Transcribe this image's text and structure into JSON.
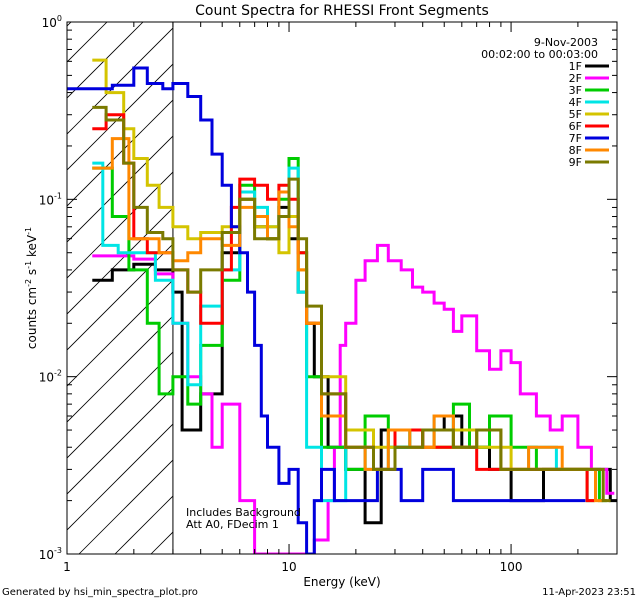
{
  "chart_data": {
    "type": "line",
    "title": "Count Spectra for RHESSI Front Segments",
    "xlabel": "Energy (keV)",
    "ylabel_main": "counts cm",
    "ylabel_exp1": "-2",
    "ylabel_mid": " s",
    "ylabel_exp2": "-1",
    "ylabel_end": " keV",
    "ylabel_exp3": "-1",
    "x_scale": "log",
    "y_scale": "log",
    "xlim": [
      1,
      300
    ],
    "ylim": [
      0.001,
      1
    ],
    "x_ticks": [
      {
        "value": 1,
        "label": "1"
      },
      {
        "value": 10,
        "label": "10"
      },
      {
        "value": 100,
        "label": "100"
      }
    ],
    "y_ticks": [
      {
        "value": 1,
        "mant": "10",
        "exp": "0"
      },
      {
        "value": 0.1,
        "mant": "10",
        "exp": "-1"
      },
      {
        "value": 0.01,
        "mant": "10",
        "exp": "-2"
      },
      {
        "value": 0.001,
        "mant": "10",
        "exp": "-3"
      }
    ],
    "hatched_region_x": [
      1,
      3
    ],
    "legend": {
      "position": "top-right",
      "date": "9-Nov-2003",
      "time_range": "00:02:00 to 00:03:00"
    },
    "annotations": [
      "Includes Background",
      "Att A0, FDecim 1"
    ],
    "footer_left": "Generated by hsi_min_spectra_plot.pro",
    "footer_right": "11-Apr-2023 23:51",
    "series": [
      {
        "name": "1F",
        "color": "#000000",
        "points": [
          [
            1.3,
            0.035
          ],
          [
            1.6,
            0.04
          ],
          [
            2.0,
            0.043
          ],
          [
            2.5,
            0.04
          ],
          [
            3.0,
            0.03
          ],
          [
            3.3,
            0.005
          ],
          [
            4.0,
            0.008
          ],
          [
            5.0,
            0.05
          ],
          [
            6.0,
            0.1
          ],
          [
            7.0,
            0.07
          ],
          [
            8.0,
            0.06
          ],
          [
            9.0,
            0.09
          ],
          [
            10.0,
            0.06
          ],
          [
            11.0,
            0.03
          ],
          [
            12.0,
            0.02
          ],
          [
            13.0,
            0.01
          ],
          [
            15.0,
            0.004
          ],
          [
            18.0,
            0.003
          ],
          [
            22.0,
            0.0015
          ],
          [
            26.0,
            0.005
          ],
          [
            30.0,
            0.004
          ],
          [
            40.0,
            0.005
          ],
          [
            50.0,
            0.006
          ],
          [
            60.0,
            0.004
          ],
          [
            80.0,
            0.003
          ],
          [
            100.0,
            0.002
          ],
          [
            140.0,
            0.003
          ],
          [
            200.0,
            0.003
          ],
          [
            280.0,
            0.002
          ]
        ]
      },
      {
        "name": "2F",
        "color": "#ff00ff",
        "points": [
          [
            1.3,
            0.048
          ],
          [
            1.7,
            0.048
          ],
          [
            2.0,
            0.046
          ],
          [
            2.5,
            0.038
          ],
          [
            3.0,
            0.02
          ],
          [
            3.5,
            0.01
          ],
          [
            4.0,
            0.008
          ],
          [
            4.5,
            0.004
          ],
          [
            5.0,
            0.007
          ],
          [
            6.0,
            0.002
          ],
          [
            7.0,
            0.001
          ],
          [
            10.0,
            0.001
          ],
          [
            13.0,
            0.0012
          ],
          [
            15.0,
            0.002
          ],
          [
            16.0,
            0.004
          ],
          [
            17.0,
            0.015
          ],
          [
            18.0,
            0.02
          ],
          [
            20.0,
            0.035
          ],
          [
            22.0,
            0.045
          ],
          [
            25.0,
            0.055
          ],
          [
            28.0,
            0.045
          ],
          [
            32.0,
            0.04
          ],
          [
            36.0,
            0.032
          ],
          [
            40.0,
            0.03
          ],
          [
            45.0,
            0.026
          ],
          [
            50.0,
            0.024
          ],
          [
            55.0,
            0.018
          ],
          [
            60.0,
            0.022
          ],
          [
            70.0,
            0.014
          ],
          [
            80.0,
            0.011
          ],
          [
            90.0,
            0.014
          ],
          [
            100.0,
            0.012
          ],
          [
            110.0,
            0.008
          ],
          [
            130.0,
            0.006
          ],
          [
            150.0,
            0.005
          ],
          [
            170.0,
            0.006
          ],
          [
            200.0,
            0.004
          ],
          [
            230.0,
            0.003
          ],
          [
            270.0,
            0.0022
          ]
        ]
      },
      {
        "name": "3F",
        "color": "#00cc00",
        "points": [
          [
            1.3,
            0.15
          ],
          [
            1.6,
            0.08
          ],
          [
            1.9,
            0.04
          ],
          [
            2.3,
            0.02
          ],
          [
            2.6,
            0.008
          ],
          [
            3.0,
            0.01
          ],
          [
            3.5,
            0.007
          ],
          [
            4.0,
            0.015
          ],
          [
            5.0,
            0.035
          ],
          [
            6.0,
            0.12
          ],
          [
            7.0,
            0.08
          ],
          [
            8.0,
            0.06
          ],
          [
            9.0,
            0.1
          ],
          [
            10.0,
            0.17
          ],
          [
            11.0,
            0.05
          ],
          [
            12.0,
            0.01
          ],
          [
            14.0,
            0.004
          ],
          [
            18.0,
            0.003
          ],
          [
            22.0,
            0.006
          ],
          [
            28.0,
            0.004
          ],
          [
            35.0,
            0.005
          ],
          [
            45.0,
            0.004
          ],
          [
            55.0,
            0.007
          ],
          [
            65.0,
            0.004
          ],
          [
            80.0,
            0.006
          ],
          [
            100.0,
            0.004
          ],
          [
            130.0,
            0.003
          ],
          [
            180.0,
            0.003
          ],
          [
            250.0,
            0.002
          ]
        ]
      },
      {
        "name": "4F",
        "color": "#00e5e5",
        "points": [
          [
            1.3,
            0.16
          ],
          [
            1.45,
            0.055
          ],
          [
            1.7,
            0.05
          ],
          [
            2.0,
            0.05
          ],
          [
            2.5,
            0.035
          ],
          [
            3.0,
            0.02
          ],
          [
            3.5,
            0.009
          ],
          [
            4.0,
            0.025
          ],
          [
            5.0,
            0.04
          ],
          [
            6.0,
            0.11
          ],
          [
            7.0,
            0.09
          ],
          [
            8.0,
            0.07
          ],
          [
            9.0,
            0.11
          ],
          [
            10.0,
            0.15
          ],
          [
            11.0,
            0.03
          ],
          [
            12.0,
            0.004
          ],
          [
            14.0,
            0.002
          ],
          [
            18.0,
            0.004
          ],
          [
            22.0,
            0.003
          ],
          [
            28.0,
            0.004
          ],
          [
            35.0,
            0.005
          ],
          [
            45.0,
            0.006
          ],
          [
            55.0,
            0.004
          ],
          [
            70.0,
            0.005
          ],
          [
            90.0,
            0.003
          ],
          [
            120.0,
            0.004
          ],
          [
            160.0,
            0.003
          ],
          [
            220.0,
            0.002
          ]
        ]
      },
      {
        "name": "5F",
        "color": "#d4c400",
        "points": [
          [
            1.3,
            0.61
          ],
          [
            1.5,
            0.4
          ],
          [
            1.8,
            0.25
          ],
          [
            2.0,
            0.17
          ],
          [
            2.3,
            0.12
          ],
          [
            2.6,
            0.09
          ],
          [
            3.0,
            0.07
          ],
          [
            3.5,
            0.06
          ],
          [
            4.0,
            0.065
          ],
          [
            5.0,
            0.07
          ],
          [
            6.0,
            0.1
          ],
          [
            7.0,
            0.07
          ],
          [
            8.0,
            0.07
          ],
          [
            9.0,
            0.05
          ],
          [
            10.0,
            0.08
          ],
          [
            11.0,
            0.04
          ],
          [
            12.0,
            0.02
          ],
          [
            14.0,
            0.01
          ],
          [
            18.0,
            0.005
          ],
          [
            24.0,
            0.004
          ],
          [
            30.0,
            0.005
          ],
          [
            40.0,
            0.004
          ],
          [
            55.0,
            0.005
          ],
          [
            70.0,
            0.004
          ],
          [
            100.0,
            0.003
          ],
          [
            150.0,
            0.003
          ],
          [
            220.0,
            0.002
          ]
        ]
      },
      {
        "name": "6F",
        "color": "#ff0000",
        "points": [
          [
            1.3,
            0.25
          ],
          [
            1.5,
            0.3
          ],
          [
            1.8,
            0.16
          ],
          [
            2.0,
            0.06
          ],
          [
            2.3,
            0.05
          ],
          [
            2.7,
            0.05
          ],
          [
            3.0,
            0.04
          ],
          [
            3.5,
            0.03
          ],
          [
            4.0,
            0.02
          ],
          [
            5.0,
            0.04
          ],
          [
            5.5,
            0.09
          ],
          [
            6.0,
            0.13
          ],
          [
            7.0,
            0.12
          ],
          [
            8.0,
            0.1
          ],
          [
            9.0,
            0.12
          ],
          [
            10.0,
            0.1
          ],
          [
            11.0,
            0.05
          ],
          [
            12.0,
            0.02
          ],
          [
            14.0,
            0.008
          ],
          [
            18.0,
            0.004
          ],
          [
            24.0,
            0.003
          ],
          [
            30.0,
            0.005
          ],
          [
            40.0,
            0.004
          ],
          [
            55.0,
            0.004
          ],
          [
            70.0,
            0.003
          ],
          [
            100.0,
            0.003
          ],
          [
            150.0,
            0.003
          ],
          [
            220.0,
            0.002
          ]
        ]
      },
      {
        "name": "7F",
        "color": "#0000dd",
        "points": [
          [
            1.0,
            0.42
          ],
          [
            1.3,
            0.42
          ],
          [
            1.6,
            0.44
          ],
          [
            2.0,
            0.55
          ],
          [
            2.3,
            0.45
          ],
          [
            2.7,
            0.42
          ],
          [
            3.0,
            0.45
          ],
          [
            3.5,
            0.38
          ],
          [
            4.0,
            0.28
          ],
          [
            4.5,
            0.18
          ],
          [
            5.0,
            0.12
          ],
          [
            5.5,
            0.07
          ],
          [
            6.0,
            0.05
          ],
          [
            6.5,
            0.03
          ],
          [
            7.0,
            0.015
          ],
          [
            7.5,
            0.006
          ],
          [
            8.0,
            0.004
          ],
          [
            9.0,
            0.0025
          ],
          [
            10.0,
            0.003
          ],
          [
            11.0,
            0.0015
          ],
          [
            12.0,
            0.001
          ],
          [
            13.0,
            0.002
          ],
          [
            14.0,
            0.003
          ],
          [
            16.0,
            0.002
          ],
          [
            20.0,
            0.002
          ],
          [
            25.0,
            0.003
          ],
          [
            32.0,
            0.002
          ],
          [
            40.0,
            0.003
          ],
          [
            55.0,
            0.002
          ],
          [
            70.0,
            0.002
          ],
          [
            100.0,
            0.002
          ],
          [
            140.0,
            0.002
          ],
          [
            200.0,
            0.002
          ]
        ]
      },
      {
        "name": "8F",
        "color": "#ff8800",
        "points": [
          [
            1.3,
            0.15
          ],
          [
            1.6,
            0.22
          ],
          [
            1.9,
            0.06
          ],
          [
            2.2,
            0.06
          ],
          [
            2.6,
            0.05
          ],
          [
            3.0,
            0.045
          ],
          [
            3.5,
            0.05
          ],
          [
            4.0,
            0.06
          ],
          [
            5.0,
            0.055
          ],
          [
            6.0,
            0.09
          ],
          [
            7.0,
            0.08
          ],
          [
            8.0,
            0.06
          ],
          [
            9.0,
            0.11
          ],
          [
            10.0,
            0.07
          ],
          [
            11.0,
            0.04
          ],
          [
            12.0,
            0.02
          ],
          [
            14.0,
            0.006
          ],
          [
            18.0,
            0.004
          ],
          [
            22.0,
            0.003
          ],
          [
            28.0,
            0.005
          ],
          [
            35.0,
            0.004
          ],
          [
            45.0,
            0.006
          ],
          [
            55.0,
            0.004
          ],
          [
            70.0,
            0.005
          ],
          [
            90.0,
            0.003
          ],
          [
            120.0,
            0.004
          ],
          [
            170.0,
            0.003
          ],
          [
            240.0,
            0.002
          ]
        ]
      },
      {
        "name": "9F",
        "color": "#7a7a00",
        "points": [
          [
            1.3,
            0.33
          ],
          [
            1.5,
            0.28
          ],
          [
            1.8,
            0.16
          ],
          [
            2.0,
            0.09
          ],
          [
            2.3,
            0.065
          ],
          [
            2.7,
            0.06
          ],
          [
            3.0,
            0.04
          ],
          [
            3.5,
            0.03
          ],
          [
            4.0,
            0.04
          ],
          [
            5.0,
            0.065
          ],
          [
            6.0,
            0.1
          ],
          [
            7.0,
            0.06
          ],
          [
            8.0,
            0.06
          ],
          [
            9.0,
            0.08
          ],
          [
            10.0,
            0.13
          ],
          [
            11.0,
            0.06
          ],
          [
            12.0,
            0.025
          ],
          [
            14.0,
            0.008
          ],
          [
            18.0,
            0.004
          ],
          [
            24.0,
            0.003
          ],
          [
            30.0,
            0.004
          ],
          [
            40.0,
            0.005
          ],
          [
            55.0,
            0.004
          ],
          [
            70.0,
            0.005
          ],
          [
            90.0,
            0.003
          ],
          [
            130.0,
            0.003
          ],
          [
            180.0,
            0.003
          ],
          [
            260.0,
            0.002
          ]
        ]
      }
    ]
  }
}
